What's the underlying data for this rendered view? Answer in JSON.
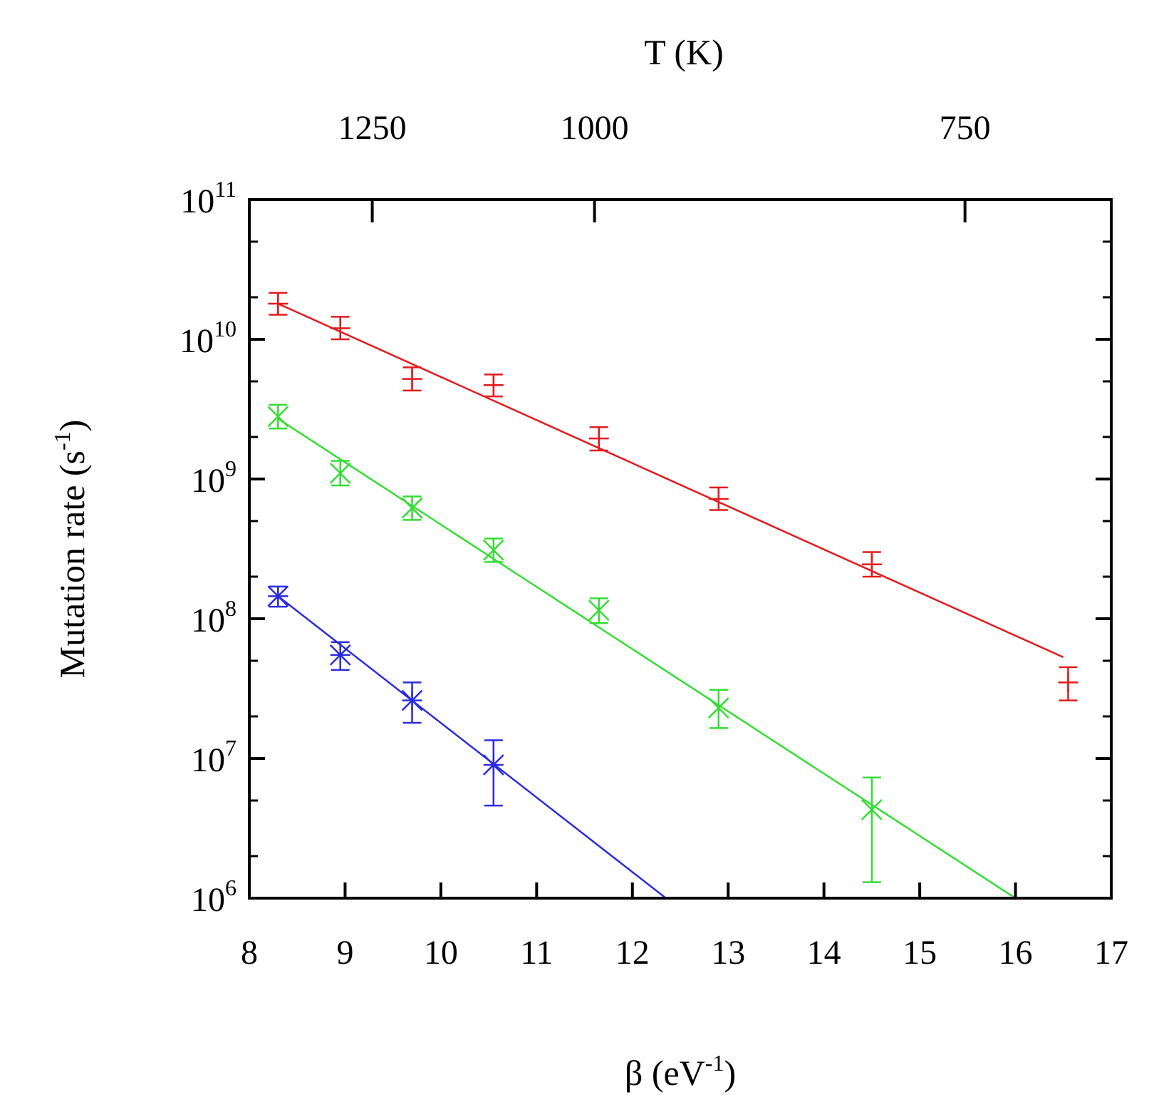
{
  "chart_data": {
    "type": "scatter",
    "title": "",
    "xlabel": "β (eV",
    "xlabel_sup": "-1",
    "xlabel_tail": ")",
    "ylabel": "Mutation rate (s",
    "ylabel_sup": "-1",
    "ylabel_tail": ")",
    "x2label": "T (K)",
    "xlim": [
      8,
      17
    ],
    "ylim_log10": [
      6,
      11
    ],
    "yscale": "log",
    "x_ticks": [
      8,
      9,
      10,
      11,
      12,
      13,
      14,
      15,
      16,
      17
    ],
    "y_ticks": [
      {
        "base": "10",
        "exp": "6"
      },
      {
        "base": "10",
        "exp": "7"
      },
      {
        "base": "10",
        "exp": "8"
      },
      {
        "base": "10",
        "exp": "9"
      },
      {
        "base": "10",
        "exp": "10"
      },
      {
        "base": "10",
        "exp": "11"
      }
    ],
    "top_ticks": [
      {
        "label": "1250",
        "value_K": 1250
      },
      {
        "label": "1000",
        "value_K": 1000
      },
      {
        "label": "750",
        "value_K": 750
      }
    ],
    "grid": false,
    "series": [
      {
        "name": "red",
        "color": "#e31a1c",
        "marker": "plus",
        "points": [
          {
            "x": 8.3,
            "y": 18000000000.0,
            "ylo": 15000000000.0,
            "yhi": 21500000000.0
          },
          {
            "x": 8.95,
            "y": 12000000000.0,
            "ylo": 10000000000.0,
            "yhi": 14500000000.0
          },
          {
            "x": 9.7,
            "y": 5200000000.0,
            "ylo": 4300000000.0,
            "yhi": 6300000000.0
          },
          {
            "x": 10.55,
            "y": 4700000000.0,
            "ylo": 3900000000.0,
            "yhi": 5600000000.0
          },
          {
            "x": 11.65,
            "y": 1950000000.0,
            "ylo": 1600000000.0,
            "yhi": 2350000000.0
          },
          {
            "x": 12.9,
            "y": 720000000.0,
            "ylo": 600000000.0,
            "yhi": 870000000.0
          },
          {
            "x": 14.5,
            "y": 245000000.0,
            "ylo": 200000000.0,
            "yhi": 300000000.0
          },
          {
            "x": 16.55,
            "y": 35000000.0,
            "ylo": 26000000.0,
            "yhi": 45000000.0
          }
        ],
        "fit": {
          "x1": 8.3,
          "y1": 18000000000.0,
          "x2": 16.5,
          "y2": 53000000.0
        }
      },
      {
        "name": "green",
        "color": "#33dd33",
        "marker": "x",
        "points": [
          {
            "x": 8.3,
            "y": 2800000000.0,
            "ylo": 2300000000.0,
            "yhi": 3400000000.0
          },
          {
            "x": 8.95,
            "y": 1100000000.0,
            "ylo": 900000000.0,
            "yhi": 1350000000.0
          },
          {
            "x": 9.7,
            "y": 620000000.0,
            "ylo": 510000000.0,
            "yhi": 750000000.0
          },
          {
            "x": 10.55,
            "y": 310000000.0,
            "ylo": 255000000.0,
            "yhi": 375000000.0
          },
          {
            "x": 11.65,
            "y": 115000000.0,
            "ylo": 93000000.0,
            "yhi": 140000000.0
          },
          {
            "x": 12.9,
            "y": 23000000.0,
            "ylo": 16500000.0,
            "yhi": 31000000.0
          },
          {
            "x": 14.5,
            "y": 4300000.0,
            "ylo": 1300000.0,
            "yhi": 7300000.0
          }
        ],
        "fit": {
          "x1": 8.3,
          "y1": 2700000000.0,
          "x2": 16.0,
          "y2": 1000000.0
        }
      },
      {
        "name": "blue",
        "color": "#2b2bdd",
        "marker": "star",
        "points": [
          {
            "x": 8.3,
            "y": 145000000.0,
            "ylo": 122000000.0,
            "yhi": 170000000.0
          },
          {
            "x": 8.95,
            "y": 55000000.0,
            "ylo": 43000000.0,
            "yhi": 68000000.0
          },
          {
            "x": 9.7,
            "y": 26000000.0,
            "ylo": 18000000.0,
            "yhi": 35000000.0
          },
          {
            "x": 10.55,
            "y": 9000000.0,
            "ylo": 4600000.0,
            "yhi": 13500000.0
          }
        ],
        "fit": {
          "x1": 8.3,
          "y1": 145000000.0,
          "x2": 12.35,
          "y2": 1000000.0
        }
      }
    ]
  }
}
